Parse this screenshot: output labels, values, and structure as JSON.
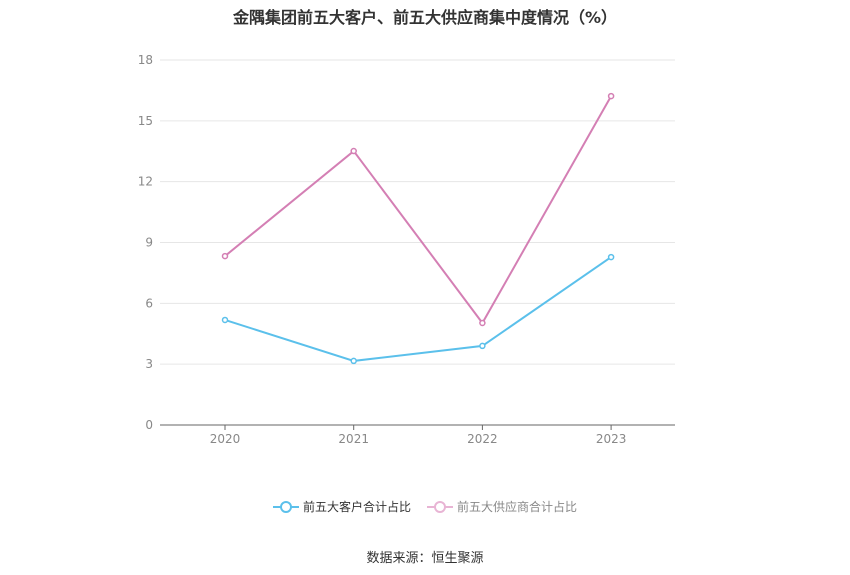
{
  "chart_data": {
    "type": "line",
    "title": "金隅集团前五大客户、前五大供应商集中度情况（%）",
    "categories": [
      "2020",
      "2021",
      "2022",
      "2023"
    ],
    "ylim": [
      0,
      18
    ],
    "yticks": [
      0,
      3,
      6,
      9,
      12,
      15,
      18
    ],
    "grid": true,
    "legend_position": "bottom",
    "series": [
      {
        "name": "前五大客户合计占比",
        "color": "#5bc0eb",
        "values": [
          5.18,
          3.16,
          3.9,
          8.28
        ]
      },
      {
        "name": "前五大供应商合计占比",
        "color": "#d47fb4",
        "values": [
          8.33,
          13.51,
          5.03,
          16.22
        ]
      }
    ]
  },
  "source": "数据来源：恒生聚源"
}
